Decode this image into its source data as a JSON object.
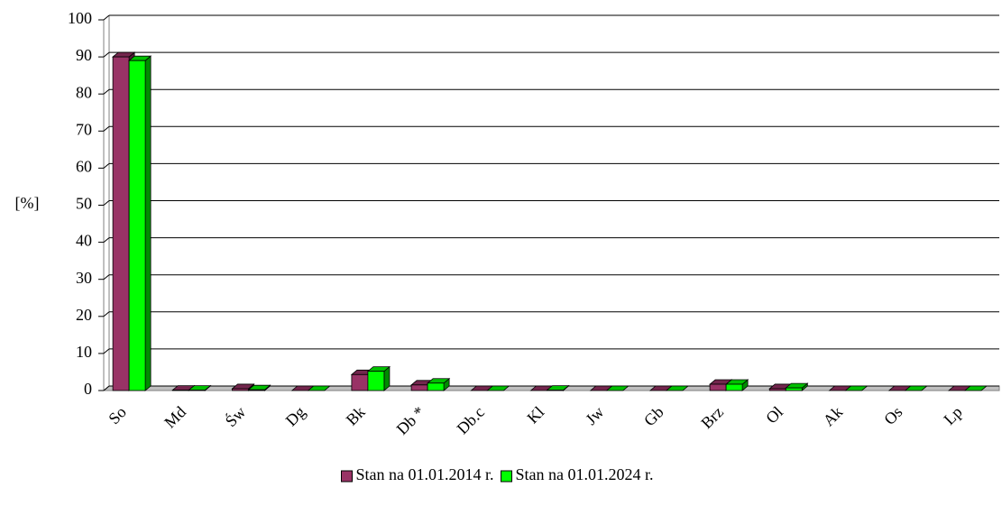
{
  "chart_data": {
    "type": "bar3d",
    "y_label": "[%]",
    "categories": [
      "So",
      "Md",
      "Św",
      "Dg",
      "Bk",
      "Db *",
      "Db.c",
      "Kl",
      "Jw",
      "Gb",
      "Brz",
      "Ol",
      "Ak",
      "Os",
      "Lp"
    ],
    "series": [
      {
        "name": "Stan na 01.01.2014 r.",
        "color": "#993366",
        "values": [
          90,
          0.1,
          0.5,
          0,
          4.3,
          1.5,
          0,
          0,
          0,
          0,
          1.7,
          0.5,
          0,
          0,
          0
        ]
      },
      {
        "name": "Stan na 01.01.2024 r.",
        "color": "#00ff00",
        "values": [
          89,
          0.1,
          0.2,
          0,
          5.2,
          2,
          0,
          0.1,
          0,
          0,
          1.7,
          0.7,
          0,
          0,
          0
        ]
      }
    ],
    "ylim": [
      0,
      100
    ],
    "yticks": [
      0,
      10,
      20,
      30,
      40,
      50,
      60,
      70,
      80,
      90,
      100
    ],
    "grid": true,
    "legend": "bottom"
  }
}
